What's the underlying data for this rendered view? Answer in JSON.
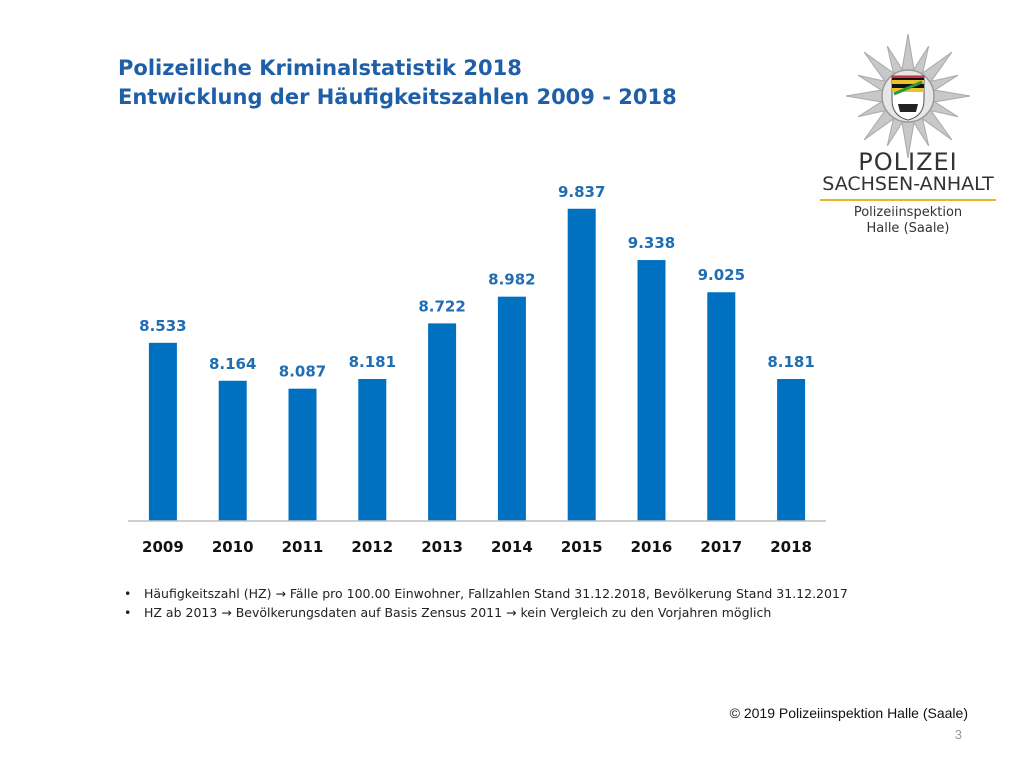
{
  "slide": {
    "title_line1": "Polizeiliche Kriminalstatistik 2018",
    "title_line2": "Entwicklung der Häufigkeitszahlen  2009 - 2018",
    "logo": {
      "line1": "POLIZEI",
      "line2": "SACHSEN-ANHALT",
      "sub1": "Polizeiinspektion",
      "sub2": "Halle (Saale)"
    },
    "notes": [
      "Häufigkeitszahl (HZ) → Fälle pro 100.00 Einwohner, Fallzahlen Stand 31.12.2018, Bevölkerung Stand 31.12.2017",
      "HZ ab 2013 → Bevölkerungsdaten auf Basis Zensus 2011 → kein Vergleich zu den Vorjahren möglich"
    ],
    "copyright": "© 2019 Polizeiinspektion Halle (Saale)",
    "page_number": "3"
  },
  "colors": {
    "bar": "#0070c0",
    "label": "#1f6db3",
    "title": "#1f5fa8"
  },
  "chart_data": {
    "type": "bar",
    "categories": [
      "2009",
      "2010",
      "2011",
      "2012",
      "2013",
      "2014",
      "2015",
      "2016",
      "2017",
      "2018"
    ],
    "values": [
      8533,
      8164,
      8087,
      8181,
      8722,
      8982,
      9837,
      9338,
      9025,
      8181
    ],
    "data_labels": [
      "8.533",
      "8.164",
      "8.087",
      "8.181",
      "8.722",
      "8.982",
      "9.837",
      "9.338",
      "9.025",
      "8.181"
    ],
    "grid": false,
    "legend": "none"
  }
}
